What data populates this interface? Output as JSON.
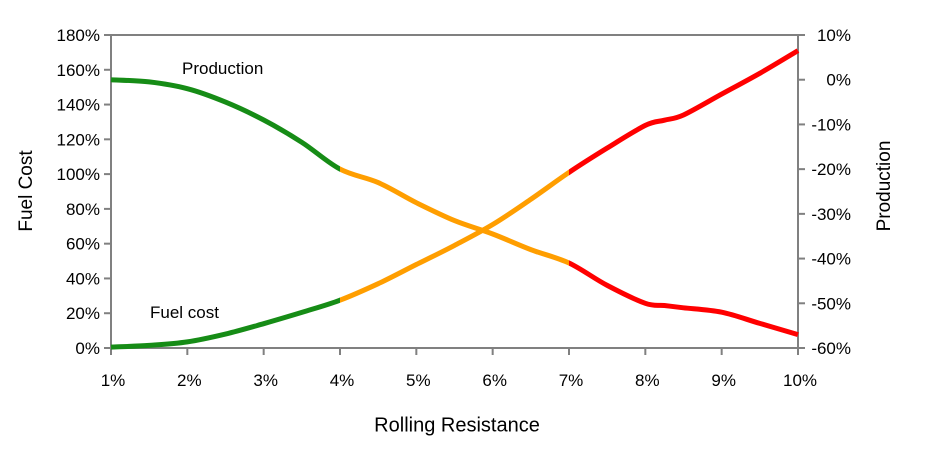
{
  "chart_data": {
    "type": "line",
    "xlabel": "Rolling Resistance",
    "ylabel_left": "Fuel Cost",
    "ylabel_right": "Production",
    "series_labels": {
      "production": "Production",
      "fuel_cost": "Fuel cost"
    },
    "x_axis": {
      "min": 1,
      "max": 10,
      "tick_values": [
        1,
        2,
        3,
        4,
        5,
        6,
        7,
        8,
        9,
        10
      ],
      "tick_labels": [
        "1%",
        "2%",
        "3%",
        "4%",
        "5%",
        "6%",
        "7%",
        "8%",
        "9%",
        "10%"
      ]
    },
    "left_axis": {
      "min": 0,
      "max": 180,
      "tick_values": [
        0,
        20,
        40,
        60,
        80,
        100,
        120,
        140,
        160,
        180
      ],
      "tick_labels": [
        "0%",
        "20%",
        "40%",
        "60%",
        "80%",
        "100%",
        "120%",
        "140%",
        "160%",
        "180%"
      ]
    },
    "right_axis": {
      "min": -60,
      "max": 10,
      "tick_values": [
        -60,
        -50,
        -40,
        -30,
        -20,
        -10,
        0,
        10
      ],
      "tick_labels": [
        "-60%",
        "-50%",
        "-40%",
        "-30%",
        "-20%",
        "-10%",
        "0%",
        "10%"
      ]
    },
    "grid": false,
    "legend": "inline-labels",
    "axis_color": "#808080",
    "background": "#FFFFFF",
    "segment_colors": [
      {
        "zone": "green",
        "from": 1,
        "to": 4,
        "color": "#168C16"
      },
      {
        "zone": "orange",
        "from": 4,
        "to": 7,
        "color": "#FF9E00"
      },
      {
        "zone": "red",
        "from": 7,
        "to": 10,
        "color": "#FF0000"
      }
    ],
    "series": [
      {
        "name": "Fuel cost",
        "axis": "left",
        "x": [
          1,
          1.5,
          2,
          2.5,
          3,
          3.5,
          4,
          4.5,
          5,
          5.5,
          6,
          6.5,
          7,
          7.5,
          8,
          8.25,
          8.5,
          9,
          9.5,
          10
        ],
        "values": [
          0.5,
          1.5,
          3.5,
          8,
          14,
          20.5,
          27.5,
          37,
          48,
          59,
          71,
          85.5,
          101,
          115,
          128,
          131,
          134,
          146,
          158,
          171
        ]
      },
      {
        "name": "Production",
        "axis": "right",
        "x": [
          1,
          1.5,
          2,
          2.5,
          3,
          3.5,
          4,
          4.5,
          5,
          5.5,
          6,
          6.5,
          7,
          7.5,
          8,
          8.25,
          8.5,
          9,
          9.5,
          10
        ],
        "values": [
          0,
          -0.5,
          -2,
          -5,
          -9,
          -14,
          -20,
          -23,
          -27.5,
          -31.5,
          -34.5,
          -38,
          -41,
          -46,
          -50,
          -50.5,
          -51,
          -52,
          -54.5,
          -57
        ]
      }
    ],
    "crossing_point": {
      "x": "5.8%",
      "fuel_cost": "65%",
      "production": "-35%"
    }
  }
}
